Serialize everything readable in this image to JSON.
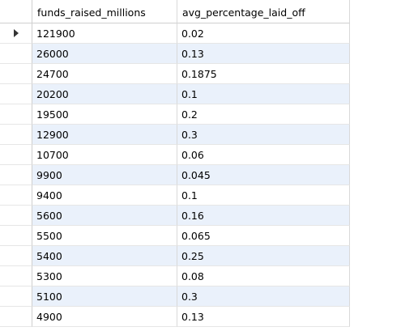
{
  "result_grid": {
    "columns": [
      "funds_raised_millions",
      "avg_percentage_laid_off"
    ],
    "rows": [
      [
        "121900",
        "0.02"
      ],
      [
        "26000",
        "0.13"
      ],
      [
        "24700",
        "0.1875"
      ],
      [
        "20200",
        "0.1"
      ],
      [
        "19500",
        "0.2"
      ],
      [
        "12900",
        "0.3"
      ],
      [
        "10700",
        "0.06"
      ],
      [
        "9900",
        "0.045"
      ],
      [
        "9400",
        "0.1"
      ],
      [
        "5600",
        "0.16"
      ],
      [
        "5500",
        "0.065"
      ],
      [
        "5400",
        "0.25"
      ],
      [
        "5300",
        "0.08"
      ],
      [
        "5100",
        "0.3"
      ],
      [
        "4900",
        "0.13"
      ]
    ],
    "current_row_icon": "triangle-right-icon"
  }
}
